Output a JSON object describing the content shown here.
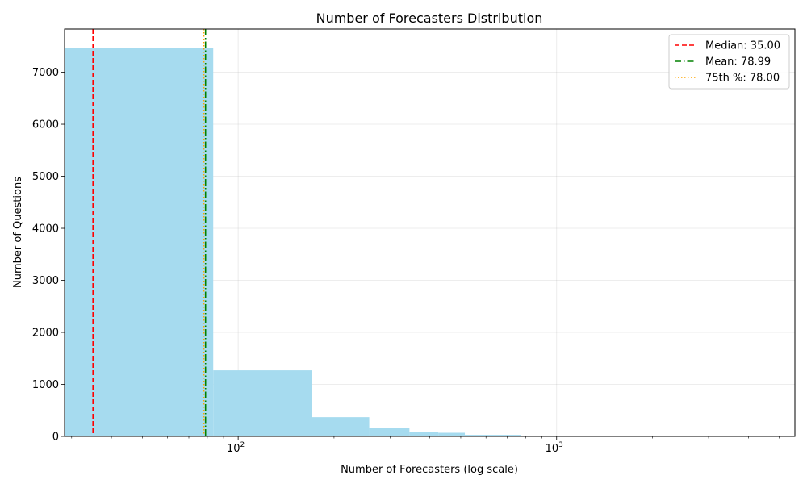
{
  "chart_data": {
    "type": "bar",
    "title": "Number of Forecasters Distribution",
    "xlabel": "Number of Forecasters (log scale)",
    "ylabel": "Number of Questions",
    "x_scale": "log",
    "xlim": [
      28.5,
      5600
    ],
    "ylim": [
      0,
      7830
    ],
    "y_ticks": [
      0,
      1000,
      2000,
      3000,
      4000,
      5000,
      6000,
      7000
    ],
    "x_ticks": [
      {
        "value": 100,
        "base": "10",
        "exp": "2"
      },
      {
        "value": 1000,
        "base": "10",
        "exp": "3"
      }
    ],
    "grid": true,
    "bar_color": "#a6dbef",
    "bins": [
      {
        "x0": 28.5,
        "x1": 83.5,
        "count": 7470
      },
      {
        "x0": 83.5,
        "x1": 170,
        "count": 1270
      },
      {
        "x0": 170,
        "x1": 258,
        "count": 370
      },
      {
        "x0": 258,
        "x1": 345,
        "count": 160
      },
      {
        "x0": 345,
        "x1": 425,
        "count": 90
      },
      {
        "x0": 425,
        "x1": 515,
        "count": 70
      },
      {
        "x0": 515,
        "x1": 770,
        "count": 30
      },
      {
        "x0": 770,
        "x1": 1000,
        "count": 14
      },
      {
        "x0": 1000,
        "x1": 1380,
        "count": 8
      },
      {
        "x0": 1380,
        "x1": 5600,
        "count": 2
      }
    ],
    "reference_lines": [
      {
        "label": "Median: 35.00",
        "value": 35.0,
        "color": "#ff0000",
        "dash": "6,3"
      },
      {
        "label": "Mean: 78.99",
        "value": 78.99,
        "color": "#008000",
        "dash": "8,3,1.5,3"
      },
      {
        "label": "75th %: 78.00",
        "value": 78.0,
        "color": "#ffa500",
        "dash": "1.5,2.5"
      }
    ],
    "legend_position": "top-right"
  }
}
